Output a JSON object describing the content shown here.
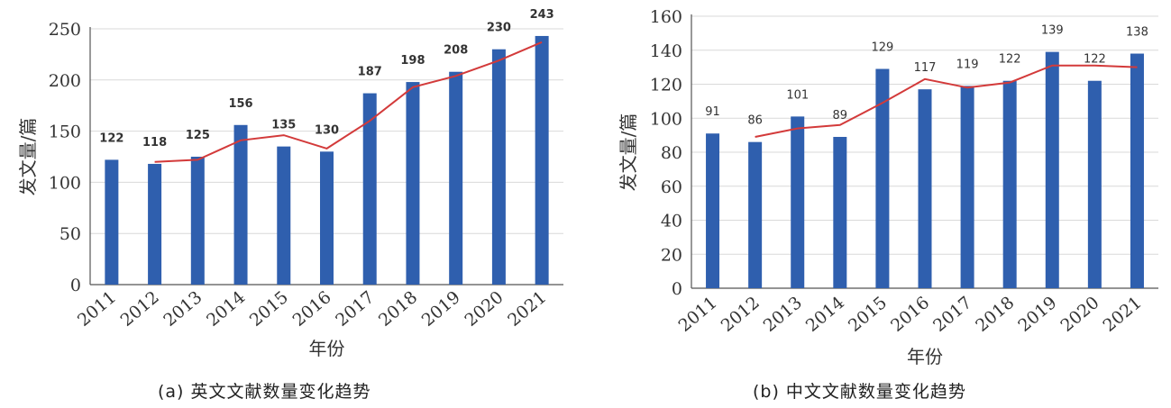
{
  "colors": {
    "bar": "#2f5fae",
    "line": "#d33a3a",
    "grid": "#d9d9d9",
    "axis": "#555555"
  },
  "chart_data": [
    {
      "type": "bar",
      "categories": [
        "2011",
        "2012",
        "2013",
        "2014",
        "2015",
        "2016",
        "2017",
        "2018",
        "2019",
        "2020",
        "2021"
      ],
      "series": [
        {
          "values": [
            122,
            118,
            125,
            156,
            135,
            130,
            187,
            198,
            208,
            230,
            243
          ]
        }
      ],
      "trend_line": [
        120,
        122,
        141,
        146,
        133,
        160,
        193,
        204,
        219,
        237
      ],
      "xlabel": "年份",
      "ylabel": "发文量/篇",
      "ylim": [
        0,
        250
      ],
      "yticks": [
        "0",
        "50",
        "100",
        "150",
        "200",
        "250"
      ],
      "grid": true,
      "caption": "(a)  英文文献数量变化趋势"
    },
    {
      "type": "bar",
      "categories": [
        "2011",
        "2012",
        "2013",
        "2014",
        "2015",
        "2016",
        "2017",
        "2018",
        "2019",
        "2020",
        "2021"
      ],
      "series": [
        {
          "values": [
            91,
            86,
            101,
            89,
            129,
            117,
            119,
            122,
            139,
            122,
            138
          ]
        }
      ],
      "trend_line": [
        89,
        94,
        96,
        109,
        123,
        118,
        121,
        131,
        131,
        130
      ],
      "xlabel": "年份",
      "ylabel": "发文量/篇",
      "ylim": [
        0,
        160
      ],
      "yticks": [
        "0",
        "20",
        "40",
        "60",
        "80",
        "100",
        "120",
        "140",
        "160"
      ],
      "grid": true,
      "caption": "(b)  中文文献数量变化趋势"
    }
  ]
}
